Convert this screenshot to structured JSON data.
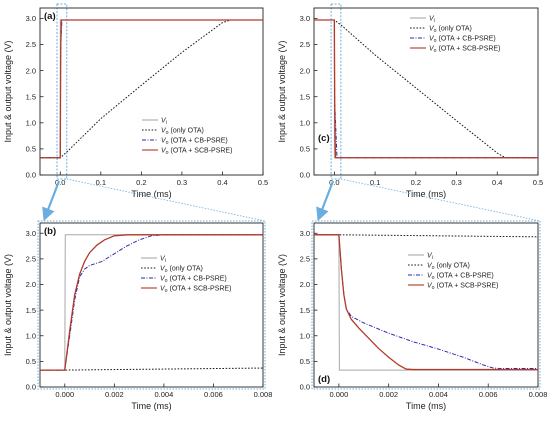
{
  "figure": {
    "ylabel_shared": "Input & output voltage (V)",
    "colors": {
      "vi": "#a8a8a8",
      "only_ota": "#1a1a1a",
      "cb_psre": "#2a2aaa",
      "scb_psre": "#b23a2a",
      "zoom_marker": "#6aaee0"
    }
  },
  "chart_data": [
    {
      "id": "a",
      "panel_label": "(a)",
      "type": "line",
      "xlabel": "Time (ms)",
      "ylabel": "Input & output voltage (V)",
      "xlim": [
        -0.05,
        0.5
      ],
      "ylim": [
        0.0,
        3.2
      ],
      "xticks": [
        0.0,
        0.1,
        0.2,
        0.3,
        0.4,
        0.5
      ],
      "xtick_labels": [
        "0.0",
        "0.1",
        "0.2",
        "0.3",
        "0.4",
        "0.5"
      ],
      "yticks": [
        0.0,
        0.5,
        1.0,
        1.5,
        2.0,
        2.5,
        3.0
      ],
      "ytick_labels": [
        "0.0",
        "0.5",
        "1.0",
        "1.5",
        "2.0",
        "2.5",
        "3.0"
      ],
      "legend_position": "lower-right",
      "zoom_region": {
        "x": [
          -0.008,
          0.016
        ]
      },
      "series": [
        {
          "name": "Vi",
          "name_main": "V",
          "name_sub": "i",
          "name_tail": "",
          "style": "solid",
          "color": "#a8a8a8",
          "points": [
            [
              -0.05,
              0.33
            ],
            [
              0.0,
              0.33
            ],
            [
              0.0001,
              2.97
            ],
            [
              0.5,
              2.97
            ]
          ]
        },
        {
          "name": "Vo (only OTA)",
          "name_main": "V",
          "name_sub": "o",
          "name_tail": " (only OTA)",
          "style": "dotted",
          "color": "#1a1a1a",
          "points": [
            [
              -0.05,
              0.33
            ],
            [
              0.0,
              0.33
            ],
            [
              0.02,
              0.47
            ],
            [
              0.1,
              1.08
            ],
            [
              0.2,
              1.72
            ],
            [
              0.3,
              2.35
            ],
            [
              0.4,
              2.92
            ],
            [
              0.42,
              2.97
            ],
            [
              0.5,
              2.97
            ]
          ]
        },
        {
          "name": "Vo (OTA + CB-PSRE)",
          "name_main": "V",
          "name_sub": "o",
          "name_tail": " (OTA + CB-PSRE)",
          "style": "dashdot",
          "color": "#2a2aaa",
          "points": [
            [
              -0.05,
              0.33
            ],
            [
              0.0,
              0.33
            ],
            [
              0.001,
              2.3
            ],
            [
              0.002,
              2.6
            ],
            [
              0.004,
              2.97
            ],
            [
              0.5,
              2.97
            ]
          ]
        },
        {
          "name": "Vo (OTA + SCB-PSRE)",
          "name_main": "V",
          "name_sub": "o",
          "name_tail": " (OTA + SCB-PSRE)",
          "style": "solid",
          "color": "#b23a2a",
          "points": [
            [
              -0.05,
              0.33
            ],
            [
              0.0,
              0.33
            ],
            [
              0.001,
              2.4
            ],
            [
              0.0025,
              2.97
            ],
            [
              0.5,
              2.97
            ]
          ]
        }
      ]
    },
    {
      "id": "c",
      "panel_label": "(c)",
      "type": "line",
      "xlabel": "Time (ms)",
      "ylabel": "Input & output voltage (V)",
      "xlim": [
        -0.05,
        0.5
      ],
      "ylim": [
        0.0,
        3.2
      ],
      "xticks": [
        0.0,
        0.1,
        0.2,
        0.3,
        0.4,
        0.5
      ],
      "xtick_labels": [
        "0.0",
        "0.1",
        "0.2",
        "0.3",
        "0.4",
        "0.5"
      ],
      "yticks": [
        0.0,
        0.5,
        1.0,
        1.5,
        2.0,
        2.5,
        3.0
      ],
      "ytick_labels": [
        "0.0",
        "0.5",
        "1.0",
        "1.5",
        "2.0",
        "2.5",
        "3.0"
      ],
      "legend_position": "top-right",
      "zoom_region": {
        "x": [
          -0.008,
          0.016
        ]
      },
      "series": [
        {
          "name": "Vi",
          "name_main": "V",
          "name_sub": "i",
          "name_tail": "",
          "style": "solid",
          "color": "#a8a8a8",
          "points": [
            [
              -0.05,
              2.97
            ],
            [
              0.0,
              2.97
            ],
            [
              0.0001,
              0.33
            ],
            [
              0.5,
              0.33
            ]
          ]
        },
        {
          "name": "Vo (only OTA)",
          "name_main": "V",
          "name_sub": "o",
          "name_tail": " (only OTA)",
          "style": "dotted",
          "color": "#1a1a1a",
          "points": [
            [
              -0.05,
              2.97
            ],
            [
              0.0,
              2.97
            ],
            [
              0.02,
              2.85
            ],
            [
              0.1,
              2.3
            ],
            [
              0.2,
              1.67
            ],
            [
              0.3,
              1.04
            ],
            [
              0.4,
              0.42
            ],
            [
              0.42,
              0.33
            ],
            [
              0.5,
              0.33
            ]
          ]
        },
        {
          "name": "Vo (OTA + CB-PSRE)",
          "name_main": "V",
          "name_sub": "o",
          "name_tail": " (OTA + CB-PSRE)",
          "style": "dashdot",
          "color": "#2a2aaa",
          "points": [
            [
              -0.05,
              2.97
            ],
            [
              0.0,
              2.97
            ],
            [
              0.0008,
              1.4
            ],
            [
              0.002,
              1.2
            ],
            [
              0.006,
              0.4
            ],
            [
              0.008,
              0.33
            ],
            [
              0.5,
              0.33
            ]
          ]
        },
        {
          "name": "Vo (OTA + SCB-PSRE)",
          "name_main": "V",
          "name_sub": "o",
          "name_tail": " (OTA + SCB-PSRE)",
          "style": "solid",
          "color": "#b23a2a",
          "points": [
            [
              -0.05,
              2.97
            ],
            [
              0.0,
              2.97
            ],
            [
              0.0008,
              1.4
            ],
            [
              0.002,
              0.6
            ],
            [
              0.003,
              0.33
            ],
            [
              0.5,
              0.33
            ]
          ]
        }
      ]
    },
    {
      "id": "b",
      "panel_label": "(b)",
      "type": "line",
      "xlabel": "Time (ms)",
      "ylabel": "Input & output voltage (V)",
      "xlim": [
        -0.001,
        0.008
      ],
      "ylim": [
        0.0,
        3.2
      ],
      "xticks": [
        0.0,
        0.002,
        0.004,
        0.006,
        0.008
      ],
      "xtick_labels": [
        "0.000",
        "0.002",
        "0.004",
        "0.006",
        "0.008"
      ],
      "yticks": [
        0.0,
        0.5,
        1.0,
        1.5,
        2.0,
        2.5,
        3.0
      ],
      "ytick_labels": [
        "0.0",
        "0.5",
        "1.0",
        "1.5",
        "2.0",
        "2.5",
        "3.0"
      ],
      "legend_position": "right",
      "series": [
        {
          "name": "Vi",
          "name_main": "V",
          "name_sub": "i",
          "name_tail": "",
          "style": "solid",
          "color": "#a8a8a8",
          "points": [
            [
              -0.001,
              0.33
            ],
            [
              0.0,
              0.33
            ],
            [
              2e-05,
              2.97
            ],
            [
              0.008,
              2.97
            ]
          ]
        },
        {
          "name": "Vo (only OTA)",
          "name_main": "V",
          "name_sub": "o",
          "name_tail": " (only OTA)",
          "style": "dotted",
          "color": "#1a1a1a",
          "points": [
            [
              -0.001,
              0.33
            ],
            [
              0.0,
              0.33
            ],
            [
              0.008,
              0.37
            ]
          ]
        },
        {
          "name": "Vo (OTA + CB-PSRE)",
          "name_main": "V",
          "name_sub": "o",
          "name_tail": " (OTA + CB-PSRE)",
          "style": "dashdot",
          "color": "#2a2aaa",
          "points": [
            [
              -0.001,
              0.33
            ],
            [
              0.0,
              0.33
            ],
            [
              0.0002,
              1.0
            ],
            [
              0.0004,
              1.7
            ],
            [
              0.0006,
              2.15
            ],
            [
              0.0008,
              2.3
            ],
            [
              0.001,
              2.37
            ],
            [
              0.0015,
              2.45
            ],
            [
              0.002,
              2.6
            ],
            [
              0.0025,
              2.75
            ],
            [
              0.003,
              2.87
            ],
            [
              0.0035,
              2.95
            ],
            [
              0.004,
              2.97
            ],
            [
              0.008,
              2.97
            ]
          ]
        },
        {
          "name": "Vo (OTA + SCB-PSRE)",
          "name_main": "V",
          "name_sub": "o",
          "name_tail": " (OTA + SCB-PSRE)",
          "style": "solid",
          "color": "#b23a2a",
          "points": [
            [
              -0.001,
              0.33
            ],
            [
              0.0,
              0.33
            ],
            [
              0.0002,
              1.1
            ],
            [
              0.0004,
              1.8
            ],
            [
              0.0006,
              2.2
            ],
            [
              0.0008,
              2.45
            ],
            [
              0.001,
              2.62
            ],
            [
              0.0013,
              2.77
            ],
            [
              0.0016,
              2.87
            ],
            [
              0.002,
              2.95
            ],
            [
              0.0025,
              2.97
            ],
            [
              0.008,
              2.97
            ]
          ]
        }
      ]
    },
    {
      "id": "d",
      "panel_label": "(d)",
      "type": "line",
      "xlabel": "Time (ms)",
      "ylabel": "Input & output voltage (V)",
      "xlim": [
        -0.001,
        0.008
      ],
      "ylim": [
        0.0,
        3.2
      ],
      "xticks": [
        0.0,
        0.002,
        0.004,
        0.006,
        0.008
      ],
      "xtick_labels": [
        "0.000",
        "0.002",
        "0.004",
        "0.006",
        "0.008"
      ],
      "yticks": [
        0.0,
        0.5,
        1.0,
        1.5,
        2.0,
        2.5,
        3.0
      ],
      "ytick_labels": [
        "0.0",
        "0.5",
        "1.0",
        "1.5",
        "2.0",
        "2.5",
        "3.0"
      ],
      "legend_position": "upper-right",
      "series": [
        {
          "name": "Vi",
          "name_main": "V",
          "name_sub": "i",
          "name_tail": "",
          "style": "solid",
          "color": "#a8a8a8",
          "points": [
            [
              -0.001,
              2.97
            ],
            [
              0.0,
              2.97
            ],
            [
              2e-05,
              0.33
            ],
            [
              0.008,
              0.33
            ]
          ]
        },
        {
          "name": "Vo (only OTA)",
          "name_main": "V",
          "name_sub": "o",
          "name_tail": " (only OTA)",
          "style": "dotted",
          "color": "#1a1a1a",
          "points": [
            [
              -0.001,
              2.97
            ],
            [
              0.0,
              2.97
            ],
            [
              0.008,
              2.93
            ]
          ]
        },
        {
          "name": "Vo (OTA + CB-PSRE)",
          "name_main": "V",
          "name_sub": "o",
          "name_tail": " (OTA + CB-PSRE)",
          "style": "dashdot",
          "color": "#2a2aaa",
          "points": [
            [
              -0.001,
              2.97
            ],
            [
              0.0,
              2.97
            ],
            [
              0.0001,
              2.3
            ],
            [
              0.0002,
              1.8
            ],
            [
              0.0003,
              1.52
            ],
            [
              0.0005,
              1.38
            ],
            [
              0.0008,
              1.3
            ],
            [
              0.001,
              1.25
            ],
            [
              0.002,
              1.05
            ],
            [
              0.003,
              0.88
            ],
            [
              0.004,
              0.74
            ],
            [
              0.005,
              0.58
            ],
            [
              0.0058,
              0.43
            ],
            [
              0.0062,
              0.37
            ],
            [
              0.0065,
              0.36
            ],
            [
              0.008,
              0.36
            ]
          ]
        },
        {
          "name": "Vo (OTA + SCB-PSRE)",
          "name_main": "V",
          "name_sub": "o",
          "name_tail": " (OTA + SCB-PSRE)",
          "style": "solid",
          "color": "#b23a2a",
          "points": [
            [
              -0.001,
              2.97
            ],
            [
              0.0,
              2.97
            ],
            [
              0.0001,
              2.3
            ],
            [
              0.0002,
              1.8
            ],
            [
              0.0003,
              1.52
            ],
            [
              0.0005,
              1.32
            ],
            [
              0.0008,
              1.15
            ],
            [
              0.0012,
              0.95
            ],
            [
              0.0016,
              0.75
            ],
            [
              0.002,
              0.58
            ],
            [
              0.0024,
              0.43
            ],
            [
              0.0027,
              0.35
            ],
            [
              0.003,
              0.34
            ],
            [
              0.008,
              0.34
            ]
          ]
        }
      ]
    }
  ]
}
